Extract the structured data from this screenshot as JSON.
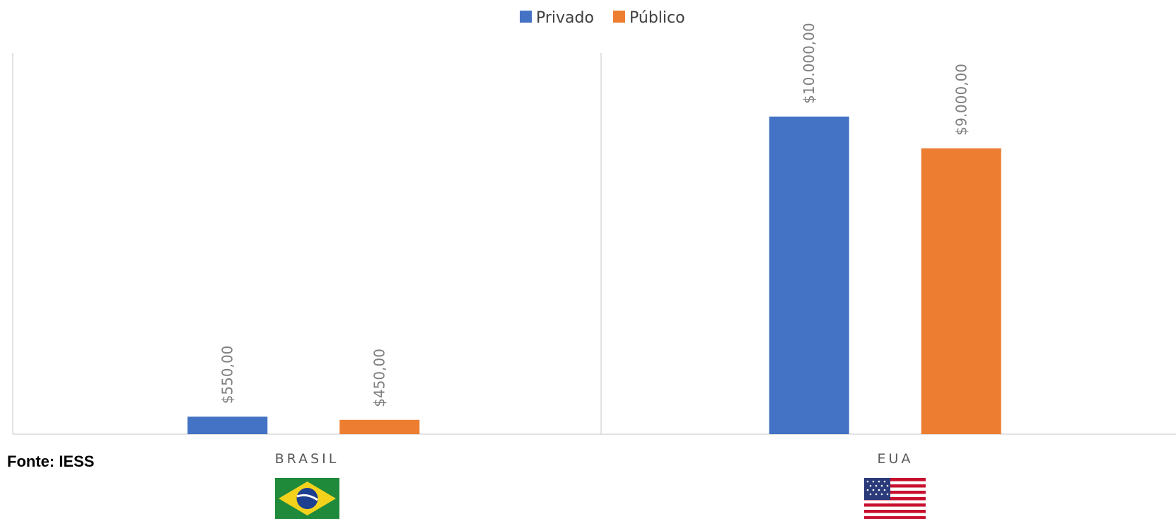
{
  "chart_data": {
    "type": "bar",
    "categories": [
      "BRASIL",
      "EUA"
    ],
    "series": [
      {
        "name": "Privado",
        "values": [
          550,
          10000
        ],
        "labels": [
          "$550,00",
          "$10.000,00"
        ]
      },
      {
        "name": "Público",
        "values": [
          450,
          9000
        ],
        "labels": [
          "$450,00",
          "$9.000,00"
        ]
      }
    ],
    "ylim": [
      0,
      12000
    ],
    "grid": false,
    "legend": "top-center",
    "source": "Fonte: IESS",
    "flags": [
      "brazil-flag-icon",
      "usa-flag-icon"
    ]
  },
  "colors": {
    "Privado": "#4472C4",
    "Público": "#ED7D31"
  }
}
